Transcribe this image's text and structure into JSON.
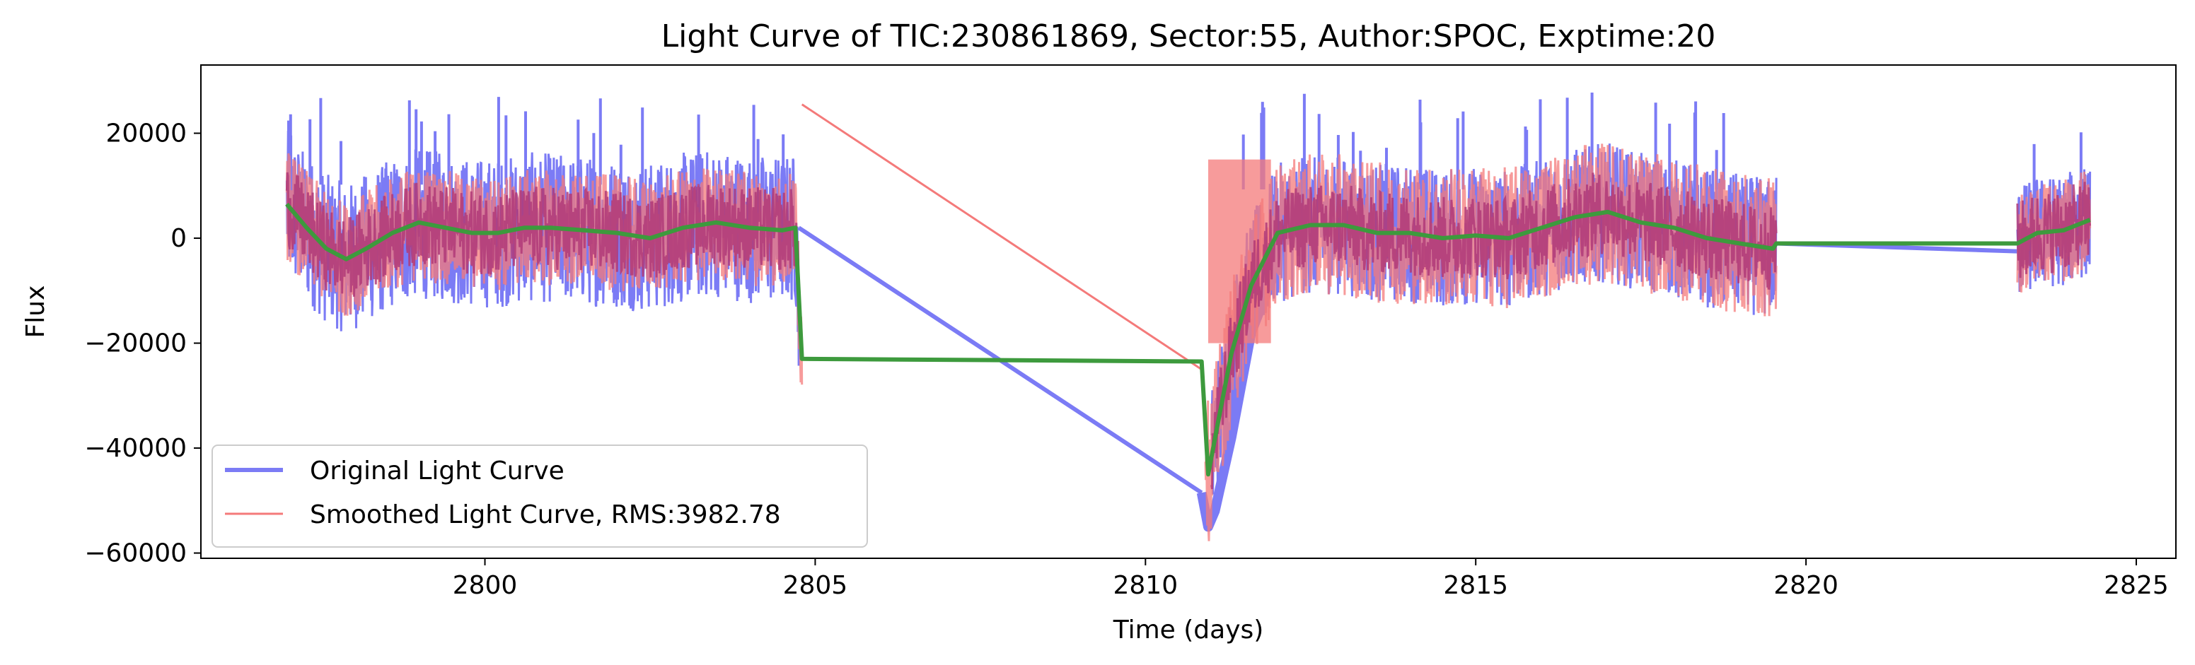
{
  "chart_data": {
    "type": "line",
    "title": "Light Curve of TIC:230861869, Sector:55, Author:SPOC, Exptime:20",
    "xlabel": "Time (days)",
    "ylabel": "Flux",
    "xlim": [
      2795.7,
      2825.6
    ],
    "ylim": [
      -61000,
      33000
    ],
    "xticks": [
      2800,
      2805,
      2810,
      2815,
      2820,
      2825
    ],
    "yticks": [
      20000,
      0,
      -20000,
      -40000,
      -60000
    ],
    "ytick_labels": [
      "20000",
      "0",
      "−20000",
      "−40000",
      "−60000"
    ],
    "grid": false,
    "legend_position": "lower-left",
    "series": [
      {
        "name": "Original Light Curve",
        "color": "#7b7bf5",
        "segments": [
          {
            "t_start": 2797.0,
            "t_end": 2804.75,
            "band_lower": -15000,
            "band_upper": 17000,
            "spikes_max": 27500
          },
          {
            "t_start": 2811.0,
            "t_end": 2819.55,
            "band_lower": -14000,
            "band_upper": 15500,
            "spikes_max": 28500
          },
          {
            "t_start": 2823.2,
            "t_end": 2824.3,
            "band_lower": -12000,
            "band_upper": 12000,
            "spikes_max": 21000
          }
        ],
        "connectors": [
          {
            "x": [
              2804.75,
              2810.85
            ],
            "y": [
              2000,
              -48500
            ]
          },
          {
            "x": [
              2819.55,
              2823.2
            ],
            "y": [
              -1000,
              -2500
            ]
          }
        ],
        "dip": {
          "t": [
            2810.85,
            2810.95,
            2811.05,
            2811.3,
            2811.6,
            2812.0
          ],
          "y": [
            -48500,
            -55000,
            -52000,
            -38000,
            -18000,
            -5000
          ]
        }
      },
      {
        "name": "Smoothed Light Curve, RMS:3982.78",
        "color": "#f47a7a",
        "segments": [
          {
            "t_start": 2797.0,
            "t_end": 2804.8,
            "band_lower": -12500,
            "band_upper": 12000
          },
          {
            "t_start": 2810.9,
            "t_end": 2819.55,
            "band_lower": -15000,
            "band_upper": 15000
          },
          {
            "t_start": 2823.2,
            "t_end": 2824.3,
            "band_lower": -11000,
            "band_upper": 11000
          }
        ],
        "connectors": [
          {
            "x": [
              2804.8,
              2810.85
            ],
            "y": [
              25500,
              -25000
            ]
          }
        ]
      },
      {
        "color": "#3d9a3d",
        "points": {
          "x": [
            2797.0,
            2797.3,
            2797.6,
            2797.9,
            2798.2,
            2798.6,
            2799.0,
            2799.4,
            2799.8,
            2800.2,
            2800.6,
            2801.0,
            2801.5,
            2802.0,
            2802.5,
            2803.0,
            2803.5,
            2804.0,
            2804.5,
            2804.7,
            2804.8,
            2810.85,
            2810.95,
            2811.1,
            2811.3,
            2811.6,
            2812.0,
            2812.5,
            2813.0,
            2813.5,
            2814.0,
            2814.5,
            2815.0,
            2815.5,
            2816.0,
            2816.5,
            2817.0,
            2817.5,
            2818.0,
            2818.5,
            2819.0,
            2819.5,
            2819.55,
            2823.2,
            2823.5,
            2823.9,
            2824.3
          ],
          "y": [
            6500,
            2000,
            -2000,
            -4000,
            -2000,
            1000,
            3000,
            2000,
            1000,
            1000,
            2000,
            2000,
            1500,
            1000,
            0,
            2000,
            3000,
            2000,
            1500,
            2000,
            -23000,
            -23500,
            -45000,
            -35000,
            -22000,
            -9000,
            1000,
            2500,
            2500,
            1000,
            1000,
            0,
            500,
            0,
            2000,
            4000,
            5000,
            3000,
            2000,
            0,
            -1000,
            -2000,
            -1000,
            -1000,
            1000,
            1500,
            3500
          ]
        }
      }
    ]
  }
}
